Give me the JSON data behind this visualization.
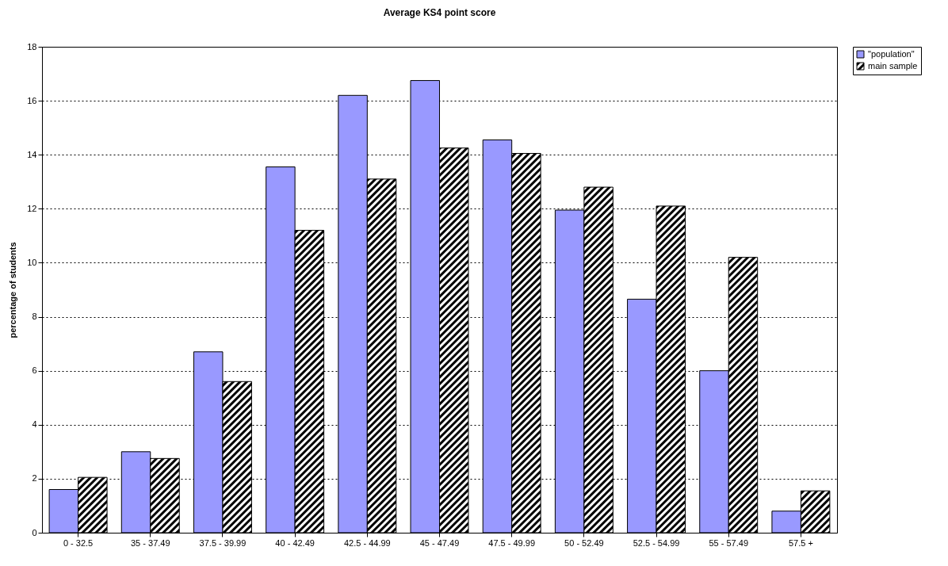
{
  "chart_data": {
    "type": "bar",
    "title": "Average KS4 point score",
    "ylabel": "percentage of students",
    "categories": [
      "0 - 32.5",
      "35 - 37.49",
      "37.5 - 39.99",
      "40 - 42.49",
      "42.5 - 44.99",
      "45 - 47.49",
      "47.5 - 49.99",
      "50 - 52.49",
      "52.5 - 54.99",
      "55 - 57.49",
      "57.5 +"
    ],
    "series": [
      {
        "name": "\"population\"",
        "color": "#9999ff",
        "values": [
          1.6,
          3.0,
          6.7,
          13.55,
          16.2,
          16.75,
          14.55,
          11.95,
          8.65,
          6.0,
          0.8
        ]
      },
      {
        "name": "main sample",
        "color": "#000000",
        "values": [
          2.05,
          2.75,
          5.6,
          11.2,
          13.1,
          14.25,
          14.05,
          12.8,
          12.1,
          10.2,
          1.55
        ]
      }
    ],
    "ylim": [
      0,
      18
    ],
    "yticks": [
      0,
      2,
      4,
      6,
      8,
      10,
      12,
      14,
      16,
      18
    ],
    "grid": "y",
    "legend": "right"
  }
}
